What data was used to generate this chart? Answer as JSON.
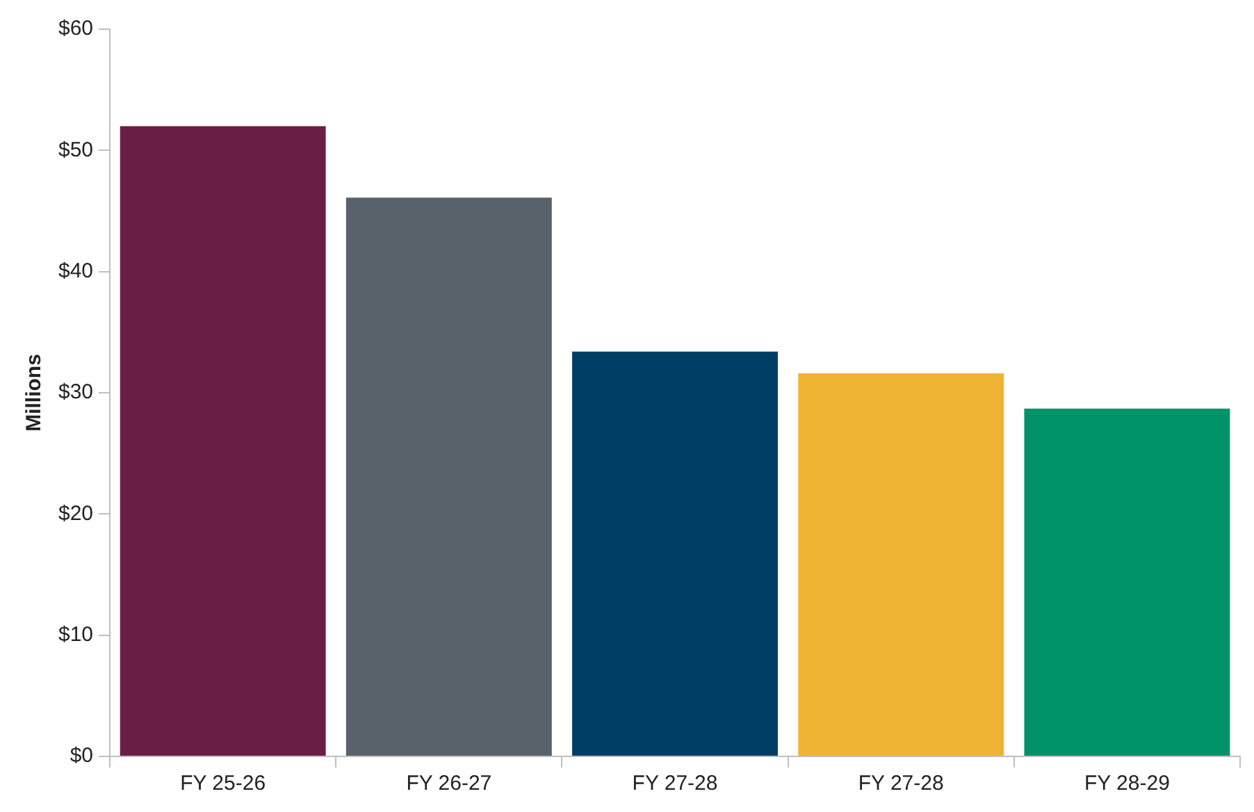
{
  "chart_data": {
    "type": "bar",
    "ylabel": "Millions",
    "categories": [
      "FY 25-26",
      "FY 26-27",
      "FY 27-28",
      "FY 27-28",
      "FY 28-29"
    ],
    "values": [
      52,
      46.1,
      33.4,
      31.6,
      28.7
    ],
    "colors": [
      "#6a1e45",
      "#57626b",
      "#003e66",
      "#efb434",
      "#00936a"
    ],
    "ylim": [
      0,
      60
    ],
    "yticks": [
      {
        "value": 0,
        "label": "$0"
      },
      {
        "value": 10,
        "label": "$10"
      },
      {
        "value": 20,
        "label": "$20"
      },
      {
        "value": 30,
        "label": "$30"
      },
      {
        "value": 40,
        "label": "$40"
      },
      {
        "value": 50,
        "label": "$50"
      },
      {
        "value": 60,
        "label": "$60"
      }
    ],
    "grid": false,
    "legend": false
  }
}
